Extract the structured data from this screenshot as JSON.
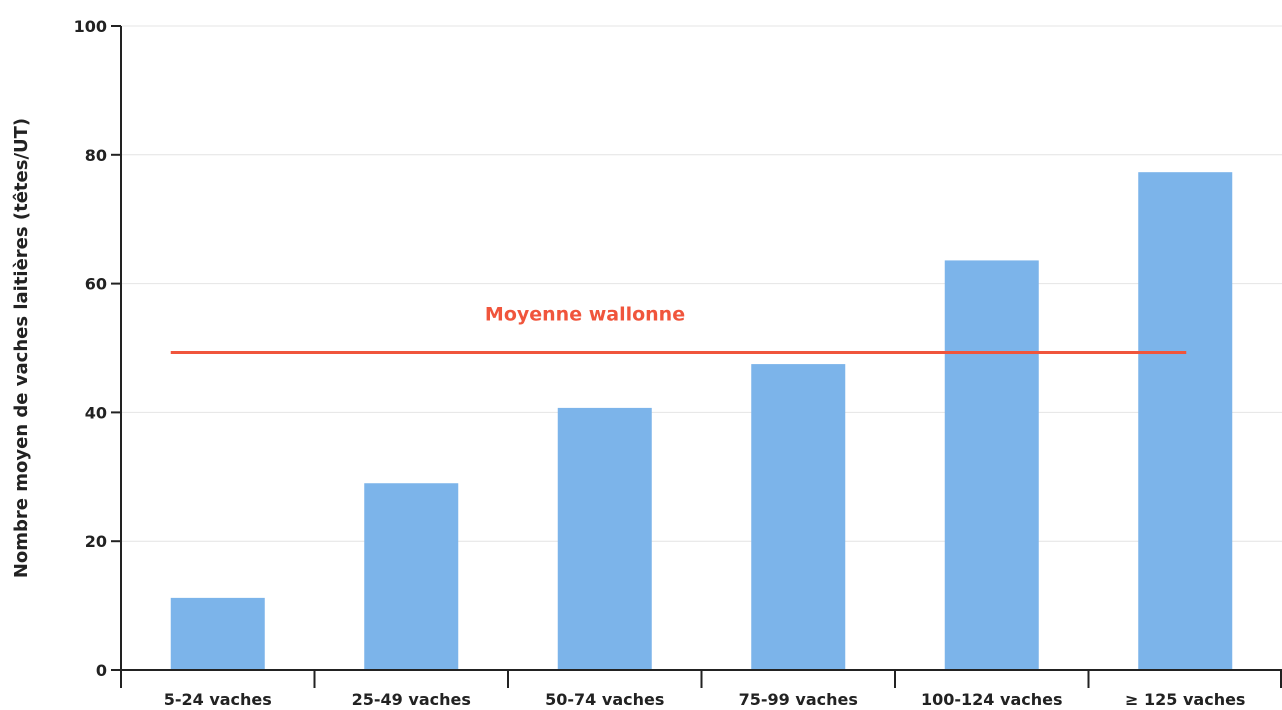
{
  "chart_data": {
    "type": "bar",
    "title": "",
    "xlabel": "",
    "ylabel": "Nombre moyen de vaches laitières (têtes/UT)",
    "categories": [
      "5-24 vaches",
      "25-49 vaches",
      "50-74 vaches",
      "75-99 vaches",
      "100-124 vaches",
      "≥ 125 vaches"
    ],
    "values": [
      11.2,
      29.0,
      40.7,
      47.5,
      63.6,
      77.3
    ],
    "ylim": [
      0,
      100
    ],
    "yticks": [
      0,
      20,
      40,
      60,
      80,
      100
    ],
    "grid": true,
    "bar_color": "#7cb4ea",
    "reference_line": {
      "label": "Moyenne wallonne",
      "value": 49.3,
      "color": "#f0553c"
    }
  }
}
